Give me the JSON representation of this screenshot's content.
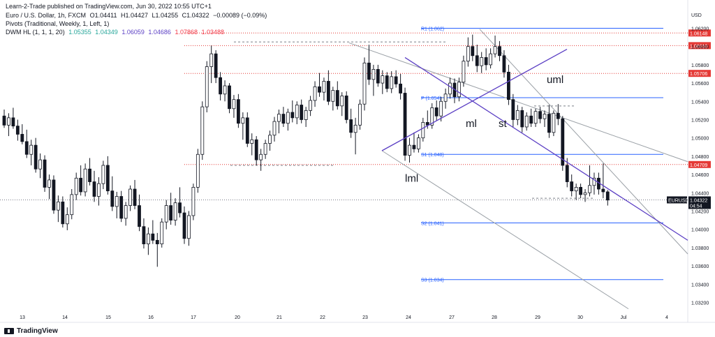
{
  "header": {
    "publisher": "Learn-2-Trade published on TradingView.com, Jun 30, 2022 10:55 UTC+1",
    "symbol_line": "Euro / U.S. Dollar, 1h, FXCM",
    "ohlc": [
      {
        "label": "O",
        "value": "1.04411"
      },
      {
        "label": "H",
        "value": "1.04427"
      },
      {
        "label": "L",
        "value": "1.04255"
      },
      {
        "label": "C",
        "value": "1.04322"
      },
      {
        "label": "",
        "value": "−0.00089 (−0.09%)"
      }
    ],
    "pivots_label": "Pivots (Traditional, Weekly, 1, Left, 1)",
    "dwm_label": "DWM HL (1, 1, 1, 20)",
    "dwm_values": [
      {
        "value": "1.05355",
        "color": "#26a69a"
      },
      {
        "value": "1.04349",
        "color": "#26a69a"
      },
      {
        "value": "1.06059",
        "color": "#5b3fc4"
      },
      {
        "value": "1.04686",
        "color": "#5b3fc4"
      },
      {
        "value": "1.07868",
        "color": "#f23645"
      },
      {
        "value": "1.03488",
        "color": "#f23645"
      }
    ]
  },
  "footer": {
    "brand": "TradingView"
  },
  "colors": {
    "up": "#ffffff",
    "down": "#131722",
    "wick": "#131722",
    "pivot": "#2962ff",
    "level_red": "#e53935",
    "fork": "#5b3fc4",
    "channel": "#9aa0a6",
    "dashed": "#7a7f87"
  },
  "chart_data": {
    "type": "candlestick",
    "title": "Euro / U.S. Dollar, 1h, FXCM",
    "currency": "USD",
    "ylim": [
      1.0315,
      1.0628
    ],
    "y_ticks": [
      "1.06200",
      "1.06000",
      "1.05800",
      "1.05600",
      "1.05400",
      "1.05200",
      "1.05000",
      "1.04800",
      "1.04600",
      "1.04400",
      "1.04200",
      "1.04000",
      "1.03800",
      "1.03600",
      "1.03400",
      "1.03200"
    ],
    "x_ticks": [
      "13",
      "14",
      "15",
      "16",
      "17",
      "20",
      "21",
      "22",
      "23",
      "24",
      "27",
      "28",
      "29",
      "30",
      "Jul",
      "4"
    ],
    "last_price": {
      "symbol": "EURUSD",
      "value": "1.04322",
      "countdown": "04:54"
    },
    "red_levels": [
      "1.06148",
      "1.06010",
      "1.05706",
      "1.04709"
    ],
    "pivots": [
      {
        "label": "R1 (1.062)",
        "value": 1.062
      },
      {
        "label": "P (1.054)",
        "value": 1.0544
      },
      {
        "label": "S1 (1.048)",
        "value": 1.0482
      },
      {
        "label": "S2 (1.041)",
        "value": 1.0407
      },
      {
        "label": "S3 (1.034)",
        "value": 1.0345
      }
    ],
    "annotations": [
      "uml",
      "ml",
      "st",
      "lml"
    ],
    "candles": [
      [
        1.0524,
        1.0531,
        1.0511,
        1.0514
      ],
      [
        1.0514,
        1.0527,
        1.0502,
        1.0522
      ],
      [
        1.0522,
        1.0533,
        1.051,
        1.0513
      ],
      [
        1.0513,
        1.052,
        1.0497,
        1.0504
      ],
      [
        1.0504,
        1.0515,
        1.0493,
        1.0496
      ],
      [
        1.0496,
        1.0509,
        1.0478,
        1.0482
      ],
      [
        1.0482,
        1.0498,
        1.047,
        1.0492
      ],
      [
        1.0492,
        1.05,
        1.0462,
        1.0466
      ],
      [
        1.0466,
        1.0483,
        1.0456,
        1.0476
      ],
      [
        1.0476,
        1.0481,
        1.0441,
        1.0446
      ],
      [
        1.0446,
        1.046,
        1.0433,
        1.0454
      ],
      [
        1.0454,
        1.0459,
        1.0417,
        1.0421
      ],
      [
        1.0421,
        1.0437,
        1.0408,
        1.043
      ],
      [
        1.043,
        1.0436,
        1.0402,
        1.0406
      ],
      [
        1.0406,
        1.0424,
        1.0399,
        1.0416
      ],
      [
        1.0416,
        1.0444,
        1.0411,
        1.0438
      ],
      [
        1.0438,
        1.0462,
        1.0432,
        1.0456
      ],
      [
        1.0456,
        1.047,
        1.0437,
        1.0441
      ],
      [
        1.0441,
        1.0472,
        1.0436,
        1.0466
      ],
      [
        1.0466,
        1.0478,
        1.0448,
        1.0452
      ],
      [
        1.0452,
        1.0464,
        1.043,
        1.0436
      ],
      [
        1.0436,
        1.0457,
        1.0426,
        1.045
      ],
      [
        1.045,
        1.0475,
        1.0444,
        1.047
      ],
      [
        1.047,
        1.048,
        1.0438,
        1.0442
      ],
      [
        1.0442,
        1.0458,
        1.042,
        1.0425
      ],
      [
        1.0425,
        1.0441,
        1.0412,
        1.0436
      ],
      [
        1.0436,
        1.0442,
        1.0408,
        1.0412
      ],
      [
        1.0412,
        1.043,
        1.0404,
        1.0426
      ],
      [
        1.0426,
        1.0448,
        1.042,
        1.0444
      ],
      [
        1.0444,
        1.0454,
        1.0422,
        1.0426
      ],
      [
        1.0426,
        1.0438,
        1.0398,
        1.0403
      ],
      [
        1.0403,
        1.0412,
        1.0379,
        1.0384
      ],
      [
        1.0384,
        1.0402,
        1.0372,
        1.0395
      ],
      [
        1.0395,
        1.041,
        1.0384,
        1.0388
      ],
      [
        1.0388,
        1.0396,
        1.0359,
        1.0384
      ],
      [
        1.0384,
        1.0412,
        1.038,
        1.0408
      ],
      [
        1.0408,
        1.0432,
        1.04,
        1.0426
      ],
      [
        1.0426,
        1.044,
        1.0405,
        1.041
      ],
      [
        1.041,
        1.0434,
        1.0404,
        1.0429
      ],
      [
        1.0429,
        1.0446,
        1.0413,
        1.0418
      ],
      [
        1.0418,
        1.0425,
        1.0384,
        1.039
      ],
      [
        1.039,
        1.042,
        1.0382,
        1.0415
      ],
      [
        1.0415,
        1.045,
        1.041,
        1.0446
      ],
      [
        1.0446,
        1.0488,
        1.044,
        1.0482
      ],
      [
        1.0482,
        1.054,
        1.0476,
        1.0534
      ],
      [
        1.0534,
        1.0584,
        1.0528,
        1.0578
      ],
      [
        1.0578,
        1.0601,
        1.056,
        1.0592
      ],
      [
        1.0592,
        1.0596,
        1.056,
        1.0566
      ],
      [
        1.0566,
        1.0572,
        1.0541,
        1.0548
      ],
      [
        1.0548,
        1.0563,
        1.054,
        1.0557
      ],
      [
        1.0557,
        1.056,
        1.0527,
        1.0532
      ],
      [
        1.0532,
        1.0547,
        1.0522,
        1.0542
      ],
      [
        1.0542,
        1.0548,
        1.0511,
        1.0516
      ],
      [
        1.0516,
        1.0528,
        1.0498,
        1.0522
      ],
      [
        1.0522,
        1.0528,
        1.049,
        1.0494
      ],
      [
        1.0494,
        1.0505,
        1.0481,
        1.0498
      ],
      [
        1.0498,
        1.0502,
        1.047,
        1.0476
      ],
      [
        1.0476,
        1.0488,
        1.0464,
        1.0482
      ],
      [
        1.0482,
        1.0498,
        1.0477,
        1.0494
      ],
      [
        1.0494,
        1.0508,
        1.0486,
        1.0503
      ],
      [
        1.0503,
        1.0523,
        1.0496,
        1.0518
      ],
      [
        1.0518,
        1.0531,
        1.0505,
        1.0526
      ],
      [
        1.0526,
        1.0534,
        1.0512,
        1.0516
      ],
      [
        1.0516,
        1.0532,
        1.0508,
        1.0528
      ],
      [
        1.0528,
        1.0541,
        1.0517,
        1.0522
      ],
      [
        1.0522,
        1.054,
        1.0515,
        1.0536
      ],
      [
        1.0536,
        1.0542,
        1.0516,
        1.052
      ],
      [
        1.052,
        1.0534,
        1.0512,
        1.053
      ],
      [
        1.053,
        1.0546,
        1.0524,
        1.0541
      ],
      [
        1.0541,
        1.0562,
        1.0534,
        1.0556
      ],
      [
        1.0556,
        1.0571,
        1.0545,
        1.055
      ],
      [
        1.055,
        1.0566,
        1.0541,
        1.0562
      ],
      [
        1.0562,
        1.0574,
        1.0536,
        1.054
      ],
      [
        1.054,
        1.0556,
        1.053,
        1.0552
      ],
      [
        1.0552,
        1.0562,
        1.0531,
        1.0535
      ],
      [
        1.0535,
        1.055,
        1.0524,
        1.0546
      ],
      [
        1.0546,
        1.0551,
        1.0516,
        1.052
      ],
      [
        1.052,
        1.0532,
        1.05,
        1.0506
      ],
      [
        1.0506,
        1.0522,
        1.0482,
        1.0514
      ],
      [
        1.0514,
        1.0542,
        1.0509,
        1.0537
      ],
      [
        1.0537,
        1.0588,
        1.053,
        1.0582
      ],
      [
        1.0582,
        1.0602,
        1.0558,
        1.0564
      ],
      [
        1.0564,
        1.058,
        1.0546,
        1.0575
      ],
      [
        1.0575,
        1.058,
        1.0556,
        1.056
      ],
      [
        1.056,
        1.0574,
        1.0548,
        1.0568
      ],
      [
        1.0568,
        1.0572,
        1.055,
        1.0554
      ],
      [
        1.0554,
        1.0573,
        1.0549,
        1.0567
      ],
      [
        1.0567,
        1.0574,
        1.0555,
        1.0559
      ],
      [
        1.0559,
        1.057,
        1.0542,
        1.0549
      ],
      [
        1.0549,
        1.0555,
        1.0475,
        1.0481
      ],
      [
        1.0481,
        1.05,
        1.0473,
        1.0492
      ],
      [
        1.0492,
        1.0506,
        1.0484,
        1.0488
      ],
      [
        1.0488,
        1.0504,
        1.0484,
        1.05
      ],
      [
        1.05,
        1.0522,
        1.0496,
        1.0517
      ],
      [
        1.0517,
        1.053,
        1.051,
        1.0514
      ],
      [
        1.0514,
        1.0538,
        1.051,
        1.0533
      ],
      [
        1.0533,
        1.0541,
        1.0519,
        1.0524
      ],
      [
        1.0524,
        1.0545,
        1.0518,
        1.054
      ],
      [
        1.054,
        1.0554,
        1.0532,
        1.0548
      ],
      [
        1.0548,
        1.0566,
        1.0543,
        1.056
      ],
      [
        1.056,
        1.0565,
        1.0538,
        1.0545
      ],
      [
        1.0545,
        1.0566,
        1.054,
        1.0561
      ],
      [
        1.0561,
        1.059,
        1.0556,
        1.0584
      ],
      [
        1.0584,
        1.061,
        1.0578,
        1.06
      ],
      [
        1.06,
        1.0613,
        1.0584,
        1.059
      ],
      [
        1.059,
        1.0602,
        1.0572,
        1.0579
      ],
      [
        1.0579,
        1.0594,
        1.0571,
        1.0588
      ],
      [
        1.0588,
        1.0598,
        1.0574,
        1.058
      ],
      [
        1.058,
        1.0598,
        1.0576,
        1.0592
      ],
      [
        1.0592,
        1.0612,
        1.0588,
        1.06
      ],
      [
        1.06,
        1.0606,
        1.0584,
        1.059
      ],
      [
        1.059,
        1.0596,
        1.0566,
        1.0572
      ],
      [
        1.0572,
        1.058,
        1.0536,
        1.0542
      ],
      [
        1.0542,
        1.0548,
        1.0512,
        1.052
      ],
      [
        1.052,
        1.0536,
        1.0514,
        1.053
      ],
      [
        1.053,
        1.0534,
        1.0506,
        1.0512
      ],
      [
        1.0512,
        1.0528,
        1.0508,
        1.0524
      ],
      [
        1.0524,
        1.0532,
        1.0512,
        1.0516
      ],
      [
        1.0516,
        1.0532,
        1.0512,
        1.0529
      ],
      [
        1.0529,
        1.0534,
        1.0516,
        1.0521
      ],
      [
        1.0521,
        1.053,
        1.0512,
        1.0526
      ],
      [
        1.0526,
        1.0536,
        1.05,
        1.0506
      ],
      [
        1.0506,
        1.053,
        1.0502,
        1.0527
      ],
      [
        1.0527,
        1.0537,
        1.0514,
        1.0521
      ],
      [
        1.0521,
        1.0524,
        1.0464,
        1.047
      ],
      [
        1.047,
        1.0478,
        1.0446,
        1.0452
      ],
      [
        1.0452,
        1.046,
        1.0436,
        1.0442
      ],
      [
        1.0442,
        1.045,
        1.0432,
        1.0446
      ],
      [
        1.0446,
        1.045,
        1.0434,
        1.0438
      ],
      [
        1.0438,
        1.0444,
        1.043,
        1.044
      ],
      [
        1.044,
        1.047,
        1.0436,
        1.0448
      ],
      [
        1.0448,
        1.0462,
        1.0438,
        1.0456
      ],
      [
        1.0456,
        1.0462,
        1.0438,
        1.0444
      ],
      [
        1.0444,
        1.0472,
        1.0434,
        1.0441
      ],
      [
        1.0441,
        1.0443,
        1.0426,
        1.0432
      ]
    ]
  }
}
